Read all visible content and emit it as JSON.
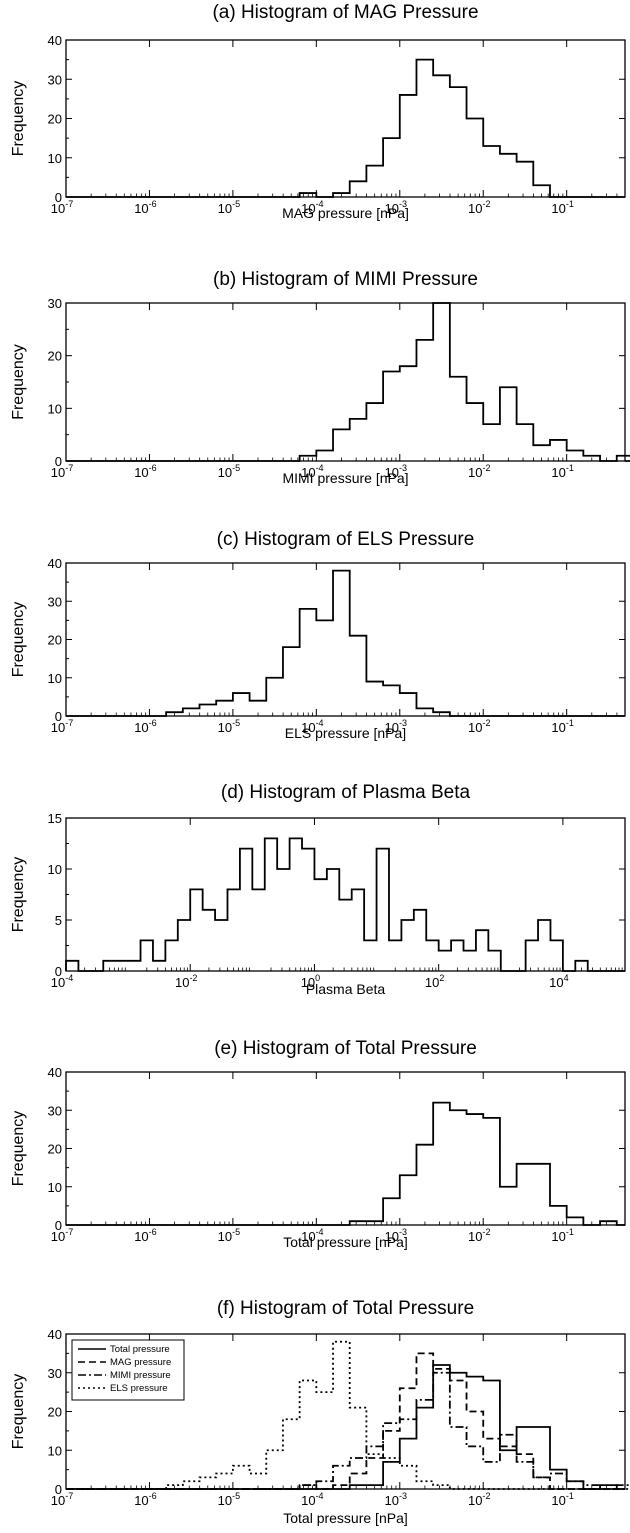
{
  "chart_data": [
    {
      "type": "histogram",
      "title": "(a) Histogram of MAG Pressure",
      "xlabel": "MAG pressure [nPa]",
      "ylabel": "Frequency",
      "xscale": "log",
      "xlim": [
        1e-07,
        0.5
      ],
      "ylim": [
        0,
        40
      ],
      "xticks": [
        {
          "base": "10",
          "exp": "-7"
        },
        {
          "base": "10",
          "exp": "-6"
        },
        {
          "base": "10",
          "exp": "-5"
        },
        {
          "base": "10",
          "exp": "-4"
        },
        {
          "base": "10",
          "exp": "-3"
        },
        {
          "base": "10",
          "exp": "-2"
        },
        {
          "base": "10",
          "exp": "-1"
        }
      ],
      "yticks": [
        "0",
        "10",
        "20",
        "30",
        "40"
      ],
      "bin_start_log10": -4.2,
      "bin_width_log10": 0.2,
      "values": [
        1,
        0,
        1,
        4,
        8,
        15,
        26,
        35,
        31,
        28,
        20,
        13,
        11,
        9,
        3,
        0
      ]
    },
    {
      "type": "histogram",
      "title": "(b) Histogram of MIMI Pressure",
      "xlabel": "MIMI pressure [nPa]",
      "ylabel": "Frequency",
      "xscale": "log",
      "xlim": [
        1e-07,
        0.5
      ],
      "ylim": [
        0,
        30
      ],
      "xticks": [
        {
          "base": "10",
          "exp": "-7"
        },
        {
          "base": "10",
          "exp": "-6"
        },
        {
          "base": "10",
          "exp": "-5"
        },
        {
          "base": "10",
          "exp": "-4"
        },
        {
          "base": "10",
          "exp": "-3"
        },
        {
          "base": "10",
          "exp": "-2"
        },
        {
          "base": "10",
          "exp": "-1"
        }
      ],
      "yticks": [
        "0",
        "10",
        "20",
        "30"
      ],
      "bin_start_log10": -4.2,
      "bin_width_log10": 0.2,
      "values": [
        1,
        2,
        6,
        8,
        11,
        17,
        18,
        23,
        30,
        16,
        11,
        7,
        14,
        7,
        3,
        4,
        2,
        1,
        0,
        1
      ]
    },
    {
      "type": "histogram",
      "title": "(c) Histogram of ELS Pressure",
      "xlabel": "ELS pressure [nPa]",
      "ylabel": "Frequency",
      "xscale": "log",
      "xlim": [
        1e-07,
        0.5
      ],
      "ylim": [
        0,
        40
      ],
      "xticks": [
        {
          "base": "10",
          "exp": "-7"
        },
        {
          "base": "10",
          "exp": "-6"
        },
        {
          "base": "10",
          "exp": "-5"
        },
        {
          "base": "10",
          "exp": "-4"
        },
        {
          "base": "10",
          "exp": "-3"
        },
        {
          "base": "10",
          "exp": "-2"
        },
        {
          "base": "10",
          "exp": "-1"
        }
      ],
      "yticks": [
        "0",
        "10",
        "20",
        "30",
        "40"
      ],
      "bin_start_log10": -5.8,
      "bin_width_log10": 0.2,
      "values": [
        1,
        2,
        3,
        4,
        6,
        4,
        10,
        18,
        28,
        25,
        38,
        21,
        9,
        8,
        6,
        2,
        1
      ]
    },
    {
      "type": "histogram",
      "title": "(d) Histogram of Plasma Beta",
      "xlabel": "Plasma Beta",
      "ylabel": "Frequency",
      "xscale": "log",
      "xlim": [
        0.0001,
        100000
      ],
      "ylim": [
        0,
        15
      ],
      "xticks": [
        {
          "base": "10",
          "exp": "-4"
        },
        {
          "base": "10",
          "exp": "-2"
        },
        {
          "base": "10",
          "exp": "0"
        },
        {
          "base": "10",
          "exp": "2"
        },
        {
          "base": "10",
          "exp": "4"
        }
      ],
      "yticks": [
        "0",
        "5",
        "10",
        "15"
      ],
      "bin_start_log10": -4.0,
      "bin_width_log10": 0.2,
      "values": [
        1,
        0,
        0,
        1,
        1,
        1,
        3,
        1,
        3,
        5,
        8,
        6,
        5,
        8,
        12,
        8,
        13,
        10,
        13,
        12,
        9,
        10,
        7,
        8,
        3,
        12,
        3,
        5,
        6,
        3,
        2,
        3,
        2,
        4,
        2,
        0,
        0,
        3,
        5,
        3,
        0,
        1,
        0
      ]
    },
    {
      "type": "histogram",
      "title": "(e) Histogram of Total Pressure",
      "xlabel": "Total pressure [nPa]",
      "ylabel": "Frequency",
      "xscale": "log",
      "xlim": [
        1e-07,
        0.5
      ],
      "ylim": [
        0,
        40
      ],
      "xticks": [
        {
          "base": "10",
          "exp": "-7"
        },
        {
          "base": "10",
          "exp": "-6"
        },
        {
          "base": "10",
          "exp": "-5"
        },
        {
          "base": "10",
          "exp": "-4"
        },
        {
          "base": "10",
          "exp": "-3"
        },
        {
          "base": "10",
          "exp": "-2"
        },
        {
          "base": "10",
          "exp": "-1"
        }
      ],
      "yticks": [
        "0",
        "10",
        "20",
        "30",
        "40"
      ],
      "bin_start_log10": -3.6,
      "bin_width_log10": 0.2,
      "values": [
        1,
        1,
        7,
        13,
        21,
        32,
        30,
        29,
        28,
        10,
        16,
        16,
        5,
        2,
        0,
        1
      ]
    },
    {
      "type": "histogram",
      "title": "(f) Histogram of Total Pressure",
      "xlabel": "Total pressure [nPa]",
      "ylabel": "Frequency",
      "xscale": "log",
      "xlim": [
        1e-07,
        0.5
      ],
      "ylim": [
        0,
        40
      ],
      "xticks": [
        {
          "base": "10",
          "exp": "-7"
        },
        {
          "base": "10",
          "exp": "-6"
        },
        {
          "base": "10",
          "exp": "-5"
        },
        {
          "base": "10",
          "exp": "-4"
        },
        {
          "base": "10",
          "exp": "-3"
        },
        {
          "base": "10",
          "exp": "-2"
        },
        {
          "base": "10",
          "exp": "-1"
        }
      ],
      "yticks": [
        "0",
        "10",
        "20",
        "30",
        "40"
      ],
      "legend_position": "top-left",
      "series": [
        {
          "name": "Total pressure",
          "dash": "solid",
          "bin_start_log10": -3.6,
          "bin_width_log10": 0.2,
          "values": [
            1,
            1,
            7,
            13,
            21,
            32,
            30,
            29,
            28,
            10,
            16,
            16,
            5,
            2,
            0,
            1
          ]
        },
        {
          "name": "MAG pressure",
          "dash": "dashed",
          "bin_start_log10": -4.2,
          "bin_width_log10": 0.2,
          "values": [
            1,
            0,
            1,
            4,
            8,
            15,
            26,
            35,
            31,
            28,
            20,
            13,
            11,
            9,
            3,
            0
          ]
        },
        {
          "name": "MIMI pressure",
          "dash": "dash-dot",
          "bin_start_log10": -4.2,
          "bin_width_log10": 0.2,
          "values": [
            1,
            2,
            6,
            8,
            11,
            17,
            18,
            23,
            30,
            16,
            11,
            7,
            14,
            7,
            3,
            4,
            2,
            1,
            0,
            1
          ]
        },
        {
          "name": "ELS pressure",
          "dash": "dash-dot-dot",
          "bin_start_log10": -5.8,
          "bin_width_log10": 0.2,
          "values": [
            1,
            2,
            3,
            4,
            6,
            4,
            10,
            18,
            28,
            25,
            38,
            21,
            9,
            8,
            6,
            2,
            1
          ]
        }
      ]
    }
  ]
}
